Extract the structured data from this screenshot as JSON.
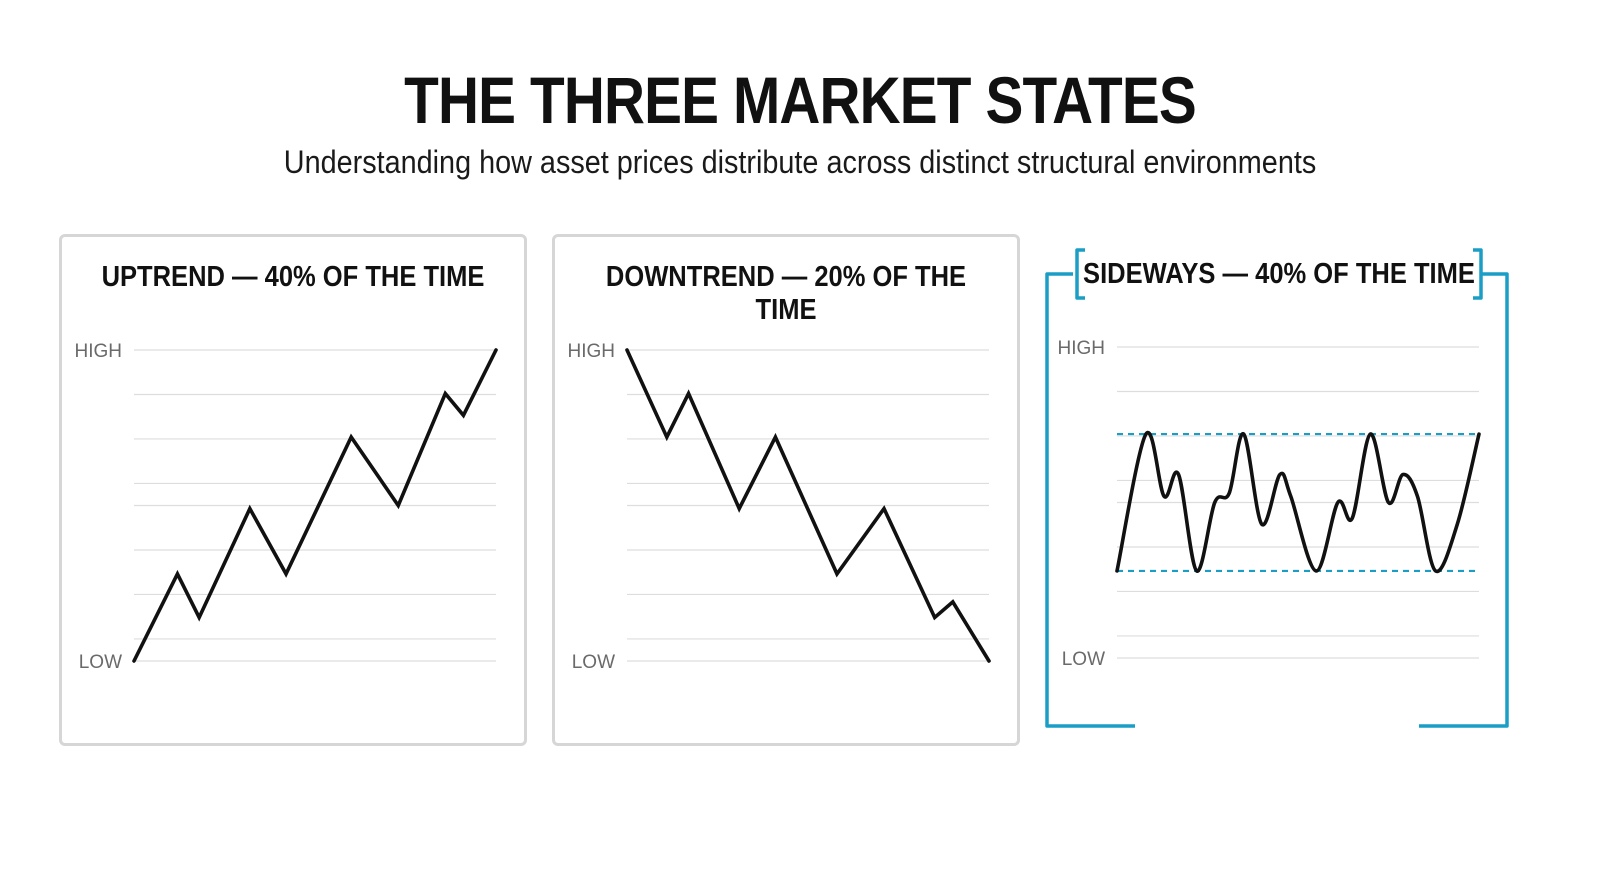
{
  "title": "THE THREE MARKET STATES",
  "subtitle": "Understanding how asset prices distribute across distinct structural environments",
  "accent_color": "#1a9ec6",
  "chart_data": [
    {
      "type": "line",
      "title": "UPTREND — 40% OF THE TIME",
      "ylabel_high": "HIGH",
      "ylabel_low": "LOW",
      "ylim": [
        0,
        1
      ],
      "grid": true,
      "series": [
        {
          "x": [
            0,
            0.12,
            0.18,
            0.32,
            0.42,
            0.6,
            0.73,
            0.86,
            0.91,
            1.0
          ],
          "values": [
            0,
            0.28,
            0.14,
            0.49,
            0.28,
            0.72,
            0.5,
            0.86,
            0.79,
            1.0
          ]
        }
      ]
    },
    {
      "type": "line",
      "title": "DOWNTREND — 20% OF THE TIME",
      "ylabel_high": "HIGH",
      "ylabel_low": "LOW",
      "ylim": [
        0,
        1
      ],
      "grid": true,
      "series": [
        {
          "x": [
            0,
            0.11,
            0.17,
            0.31,
            0.41,
            0.58,
            0.71,
            0.85,
            0.9,
            1.0
          ],
          "values": [
            1.0,
            0.72,
            0.86,
            0.49,
            0.72,
            0.28,
            0.49,
            0.14,
            0.19,
            0
          ]
        }
      ]
    },
    {
      "type": "line",
      "title": "SIDEWAYS — 40% OF THE TIME",
      "ylabel_high": "HIGH",
      "ylabel_low": "LOW",
      "ylim": [
        0,
        1
      ],
      "grid": true,
      "range_bounds": [
        0.28,
        0.72
      ],
      "series": [
        {
          "x": [
            0,
            0.08,
            0.13,
            0.17,
            0.22,
            0.27,
            0.31,
            0.35,
            0.4,
            0.45,
            0.48,
            0.55,
            0.61,
            0.65,
            0.7,
            0.75,
            0.79,
            0.83,
            0.88,
            0.94,
            1.0
          ],
          "values": [
            0.28,
            0.72,
            0.52,
            0.59,
            0.28,
            0.5,
            0.53,
            0.72,
            0.43,
            0.59,
            0.52,
            0.28,
            0.5,
            0.45,
            0.72,
            0.5,
            0.59,
            0.52,
            0.28,
            0.43,
            0.72
          ]
        }
      ]
    }
  ]
}
